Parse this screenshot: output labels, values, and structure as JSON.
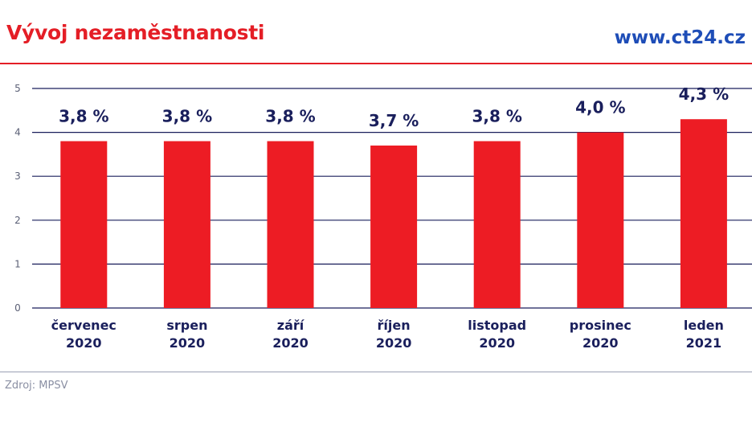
{
  "header": {
    "title": "Vývoj nezaměstnanosti",
    "site": "www.ct24.cz"
  },
  "footer": {
    "source": "Zdroj: MPSV"
  },
  "colors": {
    "bar": "#ed1c24",
    "title": "#e41e26",
    "site": "#1e4db7",
    "grid": "#1a1f5c",
    "text": "#1a1f5c"
  },
  "chart_data": {
    "type": "bar",
    "categories": [
      [
        "červenec",
        "2020"
      ],
      [
        "srpen",
        "2020"
      ],
      [
        "září",
        "2020"
      ],
      [
        "říjen",
        "2020"
      ],
      [
        "listopad",
        "2020"
      ],
      [
        "prosinec",
        "2020"
      ],
      [
        "leden",
        "2021"
      ]
    ],
    "values": [
      3.8,
      3.8,
      3.8,
      3.7,
      3.8,
      4.0,
      4.3
    ],
    "data_labels": [
      "3,8 %",
      "3,8 %",
      "3,8 %",
      "3,7 %",
      "3,8 %",
      "4,0 %",
      "4,3 %"
    ],
    "ylim": [
      0,
      5
    ],
    "yticks": [
      0,
      1,
      2,
      3,
      4,
      5
    ],
    "grid": true
  }
}
